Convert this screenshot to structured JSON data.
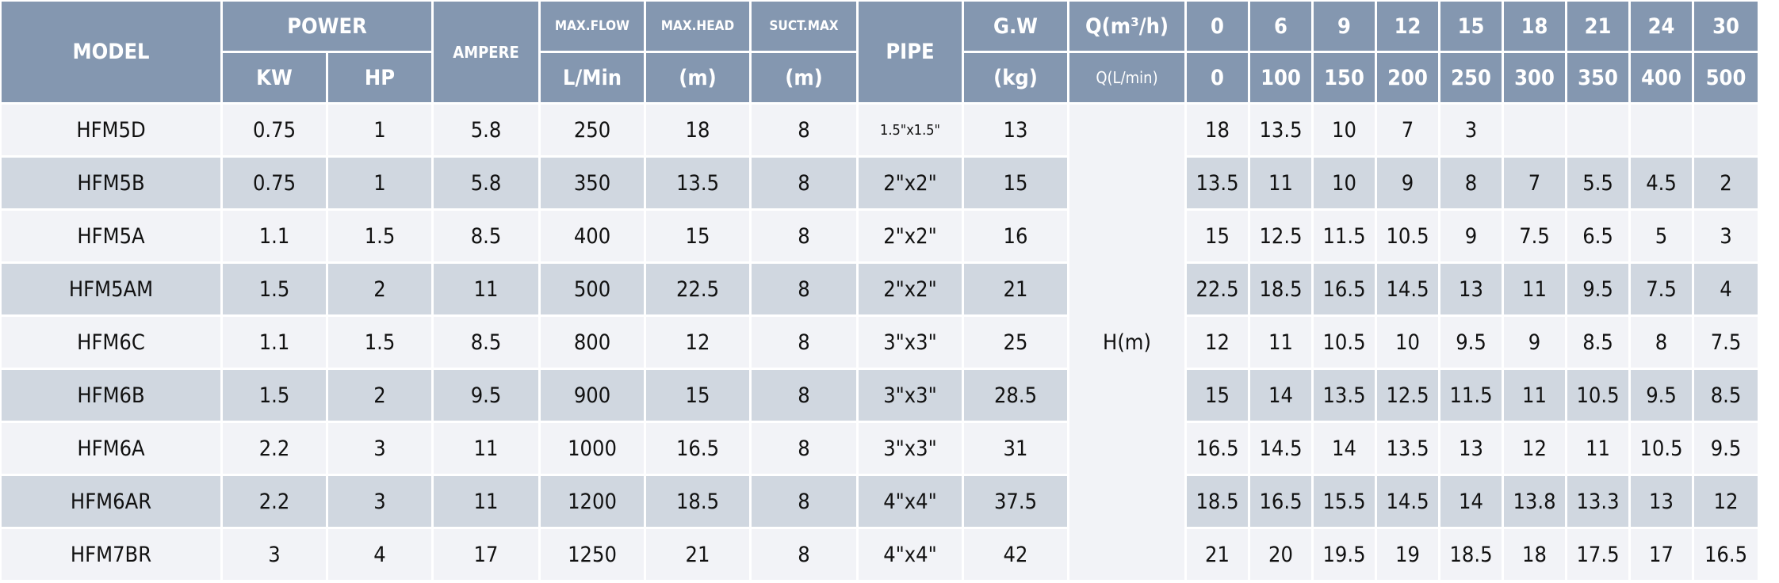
{
  "header": {
    "model": "MODEL",
    "power": "POWER",
    "kw": "KW",
    "hp": "HP",
    "ampere": "AMPERE",
    "max_flow": "MAX.FLOW",
    "max_flow_unit": "L/Min",
    "max_head": "MAX.HEAD",
    "max_head_unit": "(m)",
    "suct_max": "SUCT.MAX",
    "suct_max_unit": "(m)",
    "pipe": "PIPE",
    "gw": "G.W",
    "gw_unit": "(kg)",
    "q_m3h_label": "Q(m³/h)",
    "q_lmin_label": "Q(L/min)",
    "q_m3h": [
      "0",
      "6",
      "9",
      "12",
      "15",
      "18",
      "21",
      "24",
      "30"
    ],
    "q_lmin": [
      "0",
      "100",
      "150",
      "200",
      "250",
      "300",
      "350",
      "400",
      "500"
    ]
  },
  "head_label": "H(m)",
  "rows": [
    {
      "model": "HFM5D",
      "kw": "0.75",
      "hp": "1",
      "ampere": "5.8",
      "flow": "250",
      "head": "18",
      "suct": "8",
      "pipe": "1.5\"x1.5\"",
      "gw": "13",
      "h": [
        "18",
        "13.5",
        "10",
        "7",
        "3",
        "",
        "",
        "",
        ""
      ]
    },
    {
      "model": "HFM5B",
      "kw": "0.75",
      "hp": "1",
      "ampere": "5.8",
      "flow": "350",
      "head": "13.5",
      "suct": "8",
      "pipe": "2\"x2\"",
      "gw": "15",
      "h": [
        "13.5",
        "11",
        "10",
        "9",
        "8",
        "7",
        "5.5",
        "4.5",
        "2"
      ]
    },
    {
      "model": "HFM5A",
      "kw": "1.1",
      "hp": "1.5",
      "ampere": "8.5",
      "flow": "400",
      "head": "15",
      "suct": "8",
      "pipe": "2\"x2\"",
      "gw": "16",
      "h": [
        "15",
        "12.5",
        "11.5",
        "10.5",
        "9",
        "7.5",
        "6.5",
        "5",
        "3"
      ]
    },
    {
      "model": "HFM5AM",
      "kw": "1.5",
      "hp": "2",
      "ampere": "11",
      "flow": "500",
      "head": "22.5",
      "suct": "8",
      "pipe": "2\"x2\"",
      "gw": "21",
      "h": [
        "22.5",
        "18.5",
        "16.5",
        "14.5",
        "13",
        "11",
        "9.5",
        "7.5",
        "4"
      ]
    },
    {
      "model": "HFM6C",
      "kw": "1.1",
      "hp": "1.5",
      "ampere": "8.5",
      "flow": "800",
      "head": "12",
      "suct": "8",
      "pipe": "3\"x3\"",
      "gw": "25",
      "h": [
        "12",
        "11",
        "10.5",
        "10",
        "9.5",
        "9",
        "8.5",
        "8",
        "7.5"
      ]
    },
    {
      "model": "HFM6B",
      "kw": "1.5",
      "hp": "2",
      "ampere": "9.5",
      "flow": "900",
      "head": "15",
      "suct": "8",
      "pipe": "3\"x3\"",
      "gw": "28.5",
      "h": [
        "15",
        "14",
        "13.5",
        "12.5",
        "11.5",
        "11",
        "10.5",
        "9.5",
        "8.5"
      ]
    },
    {
      "model": "HFM6A",
      "kw": "2.2",
      "hp": "3",
      "ampere": "11",
      "flow": "1000",
      "head": "16.5",
      "suct": "8",
      "pipe": "3\"x3\"",
      "gw": "31",
      "h": [
        "16.5",
        "14.5",
        "14",
        "13.5",
        "13",
        "12",
        "11",
        "10.5",
        "9.5"
      ]
    },
    {
      "model": "HFM6AR",
      "kw": "2.2",
      "hp": "3",
      "ampere": "11",
      "flow": "1200",
      "head": "18.5",
      "suct": "8",
      "pipe": "4\"x4\"",
      "gw": "37.5",
      "h": [
        "18.5",
        "16.5",
        "15.5",
        "14.5",
        "14",
        "13.8",
        "13.3",
        "13",
        "12"
      ]
    },
    {
      "model": "HFM7BR",
      "kw": "3",
      "hp": "4",
      "ampere": "17",
      "flow": "1250",
      "head": "21",
      "suct": "8",
      "pipe": "4\"x4\"",
      "gw": "42",
      "h": [
        "21",
        "20",
        "19.5",
        "19",
        "18.5",
        "18",
        "17.5",
        "17",
        "16.5"
      ]
    }
  ],
  "colors": {
    "header_bg": "#8497b0",
    "row_light": "#f2f3f7",
    "row_dark": "#d0d7e0",
    "header_text": "#ffffff"
  }
}
